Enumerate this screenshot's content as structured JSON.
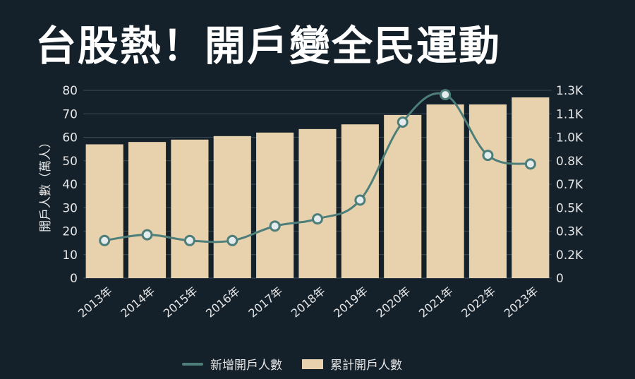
{
  "title": "台股熱！開戶變全民運動",
  "colors": {
    "background": "#14212b",
    "bar": "#e8d2ad",
    "line": "#4d7e7a",
    "marker_fill": "#e4ecee",
    "grid": "#3a4a55"
  },
  "chart_data": {
    "type": "bar",
    "title": "台股熱！開戶變全民運動",
    "categories": [
      "2013年",
      "2014年",
      "2015年",
      "2016年",
      "2017年",
      "2018年",
      "2019年",
      "2020年",
      "2021年",
      "2022年",
      "2023年"
    ],
    "ylabel": "開戶人數（萬人）",
    "ylim": [
      0,
      80
    ],
    "yticks": [
      "0",
      "10",
      "20",
      "30",
      "40",
      "50",
      "60",
      "70",
      "80"
    ],
    "y2lim": [
      0,
      1300
    ],
    "y2ticks": [
      "0",
      "0.2K",
      "0.3K",
      "0.5K",
      "0.7K",
      "0.8K",
      "1.0K",
      "1.1K",
      "1.3K"
    ],
    "grid": true,
    "legend_position": "bottom",
    "series": [
      {
        "name": "新增開戶人數",
        "type": "line",
        "axis": "right",
        "values": [
          260,
          300,
          260,
          260,
          360,
          410,
          540,
          1080,
          1270,
          850,
          790
        ]
      },
      {
        "name": "累計開戶人數",
        "type": "bar",
        "axis": "left",
        "values": [
          57,
          58,
          59,
          60.5,
          62,
          63.5,
          65.5,
          69.5,
          74,
          74,
          77
        ]
      }
    ]
  }
}
